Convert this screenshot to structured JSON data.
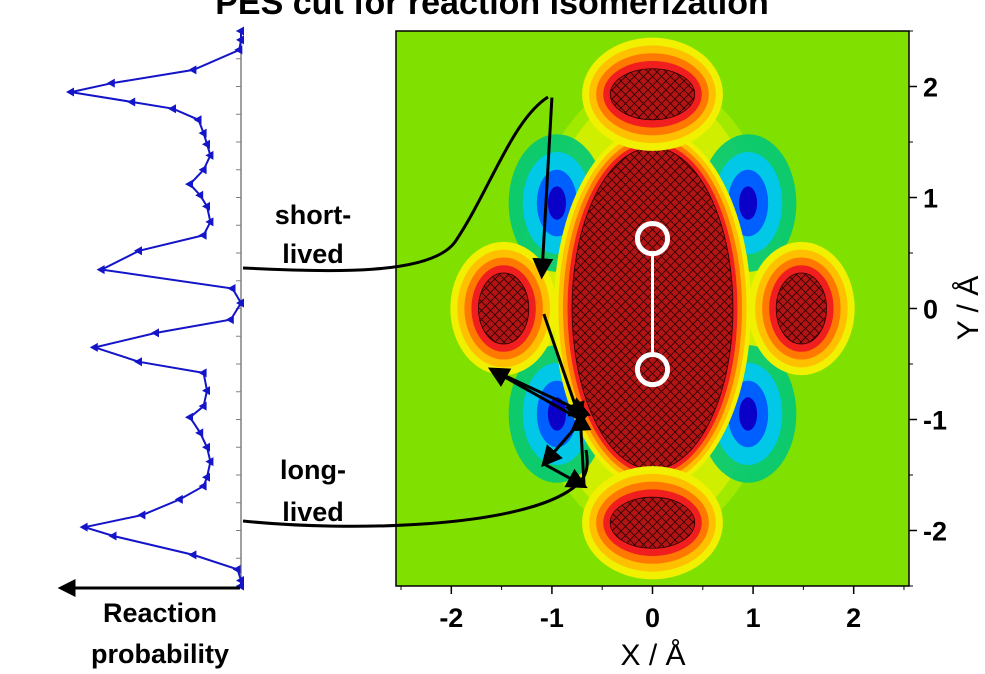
{
  "title": "PES cut for reaction isomerization",
  "chart_data": [
    {
      "type": "line",
      "name": "reaction-probability-panel",
      "xlabel_lines": [
        "Reaction",
        "probability"
      ],
      "orientation": "vertical",
      "x_direction": "right-to-left",
      "color": "#1414c8",
      "marker": "triangle-left",
      "y_range": [
        -2.5,
        2.5
      ],
      "points": [
        [
          0.0,
          2.5
        ],
        [
          0.0,
          2.42
        ],
        [
          0.01,
          2.33
        ],
        [
          0.28,
          2.15
        ],
        [
          0.76,
          2.03
        ],
        [
          1.0,
          1.95
        ],
        [
          0.64,
          1.86
        ],
        [
          0.4,
          1.8
        ],
        [
          0.25,
          1.7
        ],
        [
          0.22,
          1.58
        ],
        [
          0.2,
          1.48
        ],
        [
          0.18,
          1.38
        ],
        [
          0.22,
          1.25
        ],
        [
          0.3,
          1.12
        ],
        [
          0.24,
          1.02
        ],
        [
          0.2,
          0.92
        ],
        [
          0.18,
          0.78
        ],
        [
          0.22,
          0.66
        ],
        [
          0.6,
          0.52
        ],
        [
          0.82,
          0.35
        ],
        [
          0.05,
          0.18
        ],
        [
          0.0,
          0.05
        ],
        [
          0.06,
          -0.1
        ],
        [
          0.5,
          -0.22
        ],
        [
          0.86,
          -0.35
        ],
        [
          0.6,
          -0.48
        ],
        [
          0.22,
          -0.58
        ],
        [
          0.2,
          -0.74
        ],
        [
          0.22,
          -0.88
        ],
        [
          0.3,
          -0.98
        ],
        [
          0.24,
          -1.12
        ],
        [
          0.2,
          -1.25
        ],
        [
          0.18,
          -1.38
        ],
        [
          0.2,
          -1.52
        ],
        [
          0.22,
          -1.6
        ],
        [
          0.36,
          -1.72
        ],
        [
          0.58,
          -1.86
        ],
        [
          0.92,
          -1.97
        ],
        [
          0.75,
          -2.05
        ],
        [
          0.28,
          -2.22
        ],
        [
          0.02,
          -2.35
        ],
        [
          0.0,
          -2.45
        ],
        [
          0.0,
          -2.5
        ]
      ]
    },
    {
      "type": "heatmap",
      "name": "potential-energy-surface",
      "xlabel": "X / Å",
      "ylabel": "Y / Å",
      "xlim": [
        -2.55,
        2.55
      ],
      "ylim": [
        -2.5,
        2.5
      ],
      "x_ticks": [
        -2,
        -1,
        0,
        1,
        2
      ],
      "y_ticks": [
        -2,
        -1,
        0,
        1,
        2
      ],
      "tick_labels_x": [
        "-2",
        "-1",
        "0",
        "1",
        "2"
      ],
      "tick_labels_y": [
        "-2",
        "-1",
        "0",
        "1",
        "2"
      ],
      "colormap": [
        "#0a00c8",
        "#0060ff",
        "#00c8e6",
        "#00c878",
        "#50d200",
        "#a8ea00",
        "#f0f000",
        "#ffc000",
        "#ff7800",
        "#f01e1e",
        "#b41414"
      ],
      "background_color": "#80e000",
      "features": [
        {
          "kind": "repulsive-ellipse",
          "center": [
            0,
            0
          ],
          "radii": [
            0.8,
            1.45
          ],
          "fill": "#b41414",
          "hatched": true
        },
        {
          "kind": "repulsive-blob",
          "center": [
            0,
            1.93
          ],
          "radii": [
            0.42,
            0.23
          ],
          "hatched": true
        },
        {
          "kind": "repulsive-blob",
          "center": [
            0,
            -1.93
          ],
          "radii": [
            0.42,
            0.23
          ],
          "hatched": true
        },
        {
          "kind": "repulsive-blob",
          "center": [
            -1.48,
            0
          ],
          "radii": [
            0.25,
            0.32
          ],
          "hatched": true
        },
        {
          "kind": "repulsive-blob",
          "center": [
            1.48,
            0
          ],
          "radii": [
            0.25,
            0.32
          ],
          "hatched": true
        },
        {
          "kind": "well",
          "center": [
            -0.95,
            0.95
          ]
        },
        {
          "kind": "well",
          "center": [
            0.95,
            0.95
          ]
        },
        {
          "kind": "well",
          "center": [
            -0.95,
            -0.95
          ]
        },
        {
          "kind": "well",
          "center": [
            0.95,
            -0.95
          ]
        }
      ],
      "molecule": {
        "atoms": [
          [
            0,
            0.63
          ],
          [
            0,
            -0.55
          ]
        ],
        "atom_radius": 0.15,
        "color": "#ffffff"
      },
      "trajectories": [
        {
          "label": "short-lived",
          "points": [
            [
              -1.0,
              1.9
            ],
            [
              -1.1,
              0.3
            ]
          ]
        },
        {
          "label": "long-lived",
          "points": [
            [
              -1.08,
              -0.05
            ],
            [
              -0.72,
              -1.0
            ],
            [
              -1.6,
              -0.55
            ],
            [
              -0.65,
              -0.95
            ],
            [
              -1.08,
              -1.4
            ],
            [
              -0.68,
              -1.6
            ],
            [
              -0.72,
              -0.95
            ]
          ]
        }
      ]
    }
  ],
  "annotations": {
    "short_lived_lines": [
      "short-",
      "lived"
    ],
    "long_lived_lines": [
      "long-",
      "lived"
    ]
  }
}
